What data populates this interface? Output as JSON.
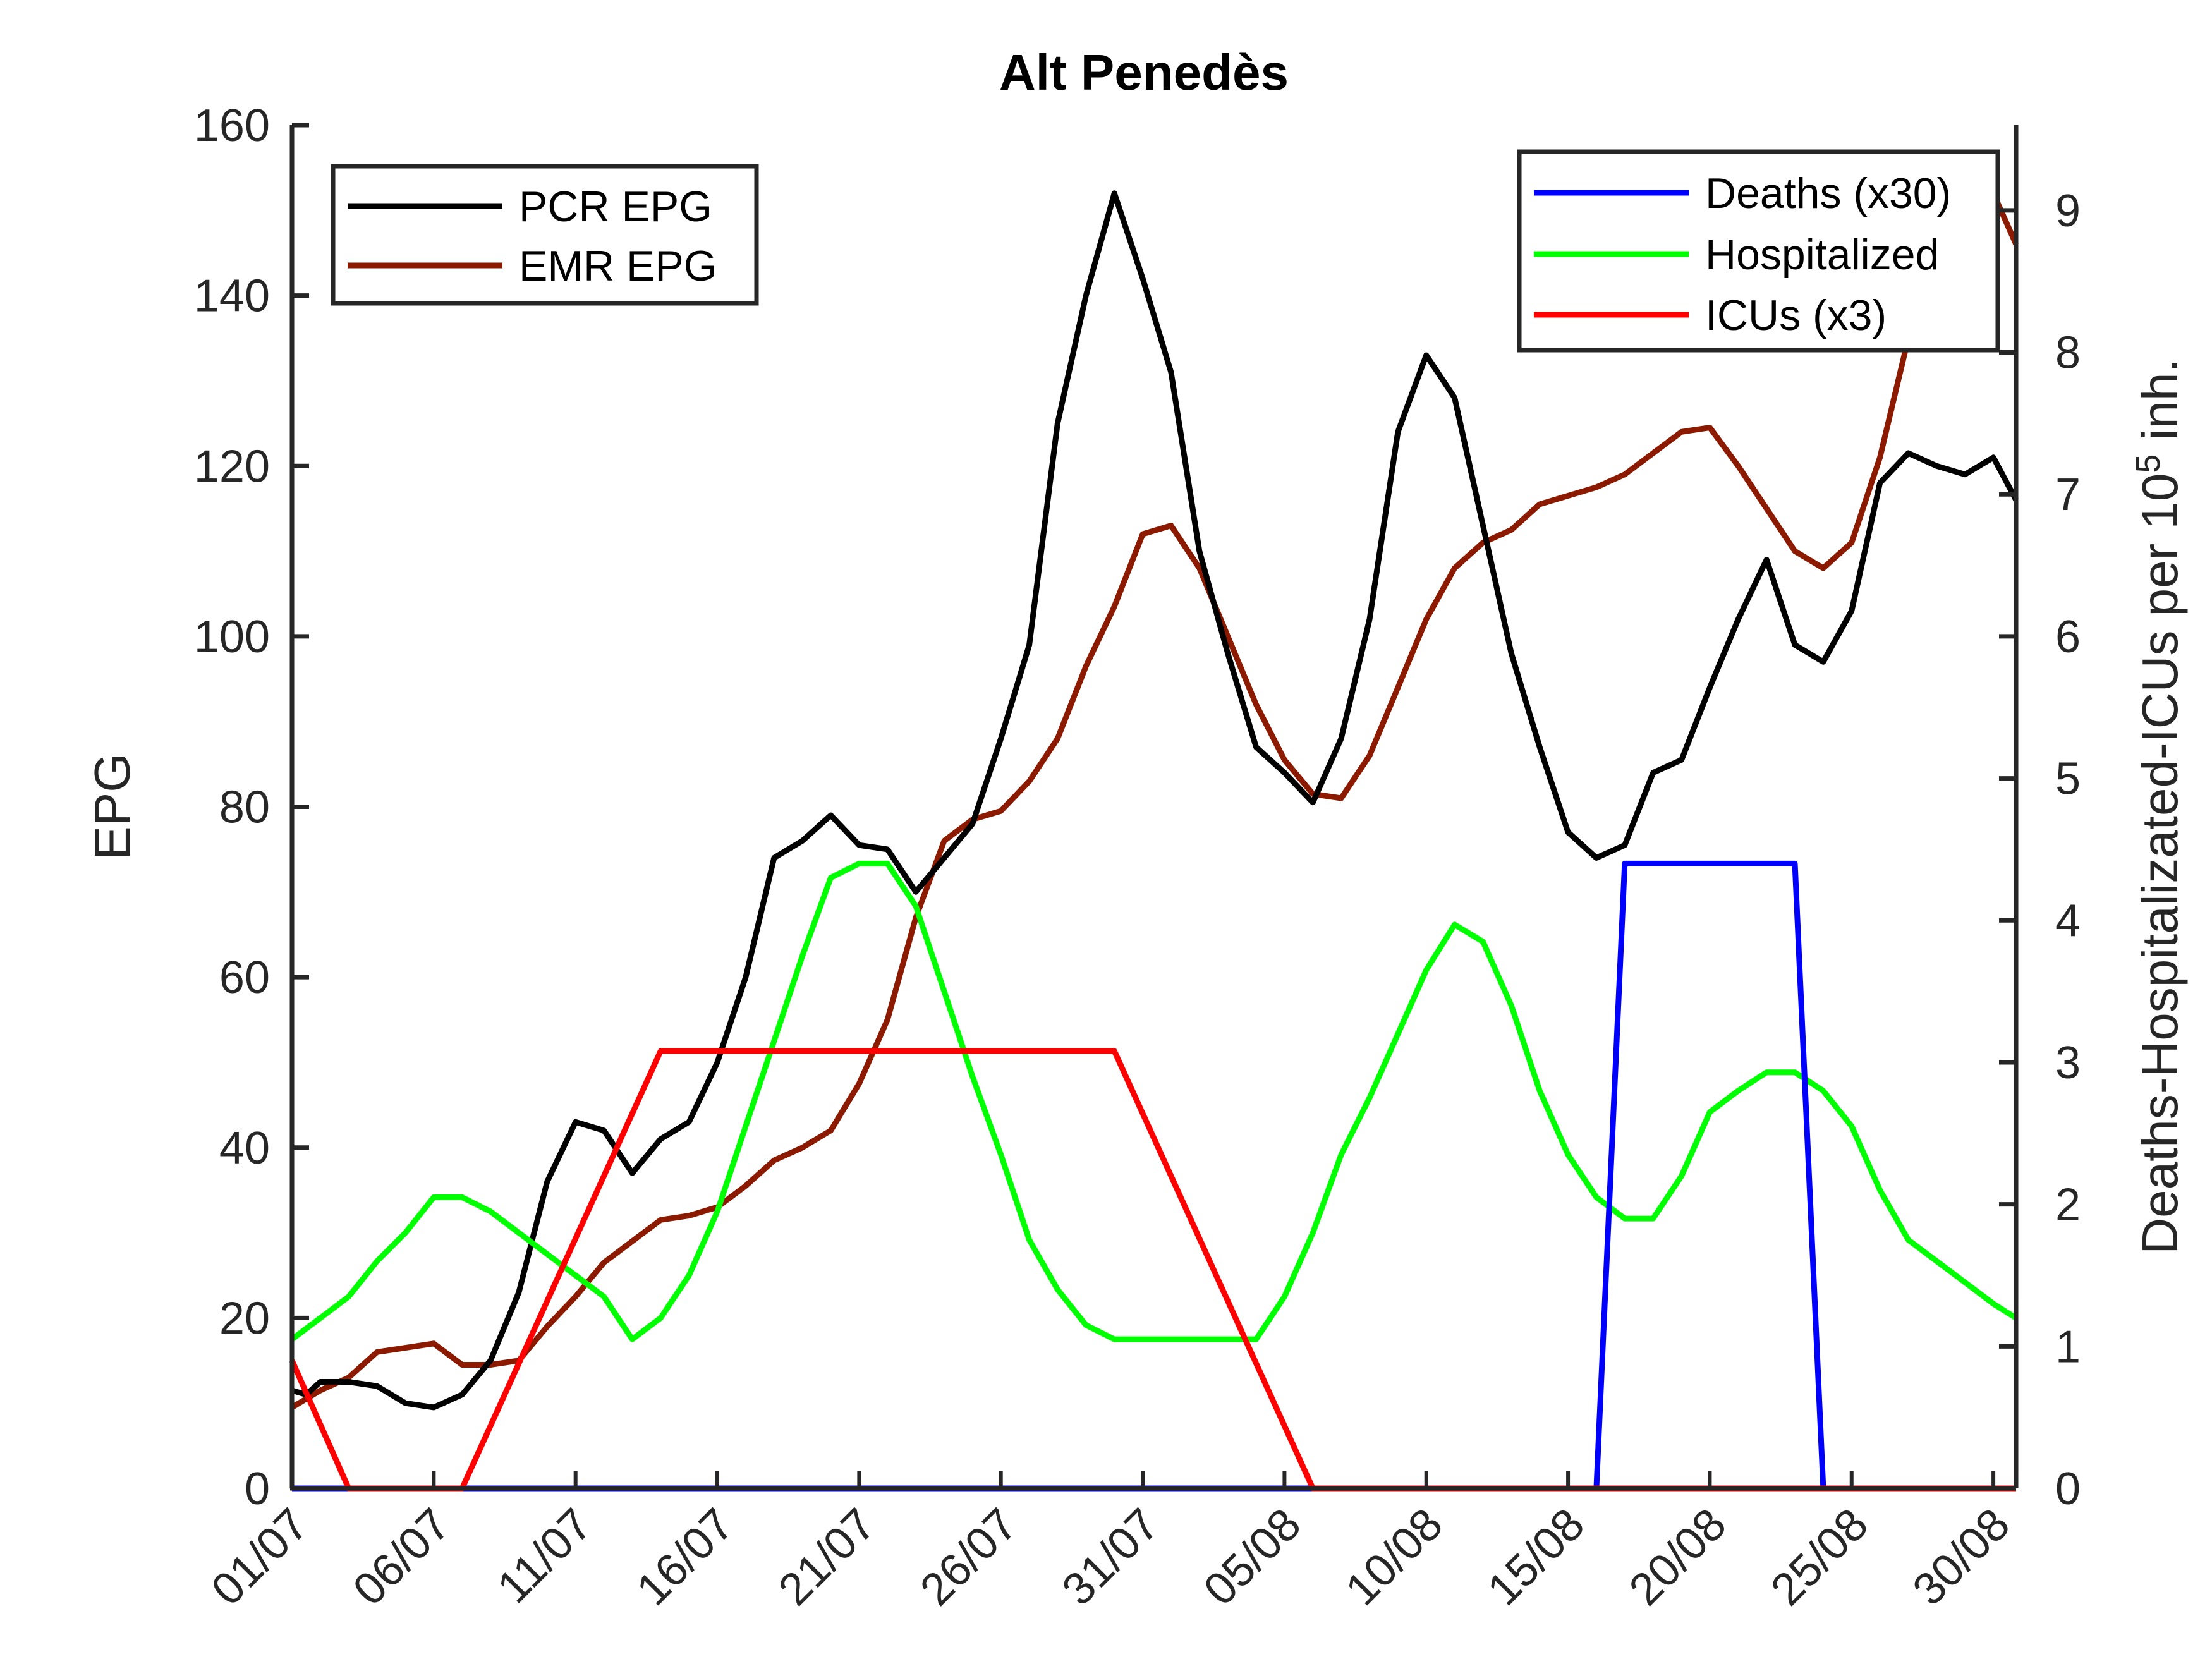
{
  "chart_data": {
    "type": "line",
    "title": "Alt Penedès",
    "xlabel": "",
    "ylabel_left": "EPG",
    "ylabel_right": {
      "text": "Deaths-Hospitalizated-ICUs per 10",
      "sup": "5",
      "suffix": " inh."
    },
    "x_ticks": [
      "01/07",
      "06/07",
      "11/07",
      "16/07",
      "21/07",
      "26/07",
      "31/07",
      "05/08",
      "10/08",
      "15/08",
      "20/08",
      "25/08",
      "30/08"
    ],
    "x_tick_index": [
      0,
      5,
      10,
      15,
      20,
      25,
      30,
      35,
      40,
      45,
      50,
      55,
      60
    ],
    "xlim": [
      0,
      60.8
    ],
    "ylim_left": [
      0,
      160
    ],
    "y_ticks_left": [
      0,
      20,
      40,
      60,
      80,
      100,
      120,
      140,
      160
    ],
    "ylim_right": [
      0,
      9.6
    ],
    "y_ticks_right": [
      0,
      1,
      2,
      3,
      4,
      5,
      6,
      7,
      8,
      9
    ],
    "grid": false,
    "legend_left": {
      "position": "top-left",
      "entries": [
        "PCR EPG",
        "EMR EPG"
      ]
    },
    "legend_right": {
      "position": "top-right",
      "entries": [
        "Deaths (x30)",
        "Hospitalized",
        "ICUs (x3)"
      ]
    },
    "series": [
      {
        "name": "PCR EPG",
        "axis": "left",
        "color": "#000000",
        "x": [
          0,
          0.5,
          1,
          2,
          3,
          4,
          5,
          6,
          7,
          8,
          9,
          10,
          11,
          12,
          13,
          14,
          15,
          16,
          17,
          18,
          19,
          20,
          21,
          22,
          23,
          24,
          25,
          26,
          27,
          28,
          29,
          30,
          31,
          32,
          33,
          34,
          35,
          36,
          37,
          38,
          39,
          40,
          41,
          42,
          43,
          44,
          45,
          46,
          47,
          48,
          49,
          50,
          51,
          52,
          53,
          54,
          55,
          56,
          57,
          58,
          59,
          60,
          60.8
        ],
        "values": [
          11.5,
          11,
          12.5,
          12.5,
          12,
          10,
          9.5,
          11,
          15,
          23,
          36,
          43,
          42,
          37,
          41,
          43,
          50,
          60,
          74,
          76,
          79,
          75.5,
          75,
          70,
          74,
          78,
          88,
          99,
          125,
          140,
          152,
          142,
          131,
          110,
          98,
          87,
          84,
          80.5,
          88,
          102,
          124,
          133,
          128,
          113,
          98,
          87,
          77,
          74,
          75.5,
          84,
          85.5,
          94,
          102,
          109,
          99,
          97,
          103,
          118,
          121.5,
          120,
          119,
          121,
          116
        ]
      },
      {
        "name": "EMR EPG",
        "axis": "left",
        "color": "#8B1A00",
        "x": [
          0,
          1,
          2,
          3,
          4,
          5,
          6,
          7,
          8,
          9,
          10,
          11,
          12,
          13,
          14,
          15,
          16,
          17,
          18,
          19,
          20,
          21,
          22,
          23,
          24,
          25,
          26,
          27,
          28,
          29,
          30,
          31,
          32,
          33,
          34,
          35,
          36,
          37,
          38,
          39,
          40,
          41,
          42,
          43,
          44,
          45,
          46,
          47,
          48,
          49,
          50,
          51,
          52,
          53,
          54,
          55,
          56,
          57,
          58,
          59,
          60,
          60.8
        ],
        "values": [
          9.5,
          11.5,
          13,
          16,
          16.5,
          17,
          14.5,
          14.5,
          15,
          19,
          22.5,
          26.5,
          29,
          31.5,
          32,
          33,
          35.5,
          38.5,
          40,
          42,
          47.5,
          55,
          67,
          76,
          78.5,
          79.5,
          83,
          88,
          96.5,
          103.5,
          112,
          113,
          108,
          100,
          92,
          85.5,
          81.5,
          81,
          86,
          94,
          102,
          108,
          111,
          112.5,
          115.5,
          116.5,
          117.5,
          119,
          121.5,
          124,
          124.5,
          120,
          115,
          110,
          108,
          111,
          121,
          135,
          145,
          150,
          152,
          146
        ]
      },
      {
        "name": "Deaths (x30)",
        "axis": "right",
        "color": "#0000FF",
        "x": [
          0,
          46,
          47,
          48,
          52,
          53,
          54,
          60.8
        ],
        "values": [
          0,
          0,
          4.4,
          4.4,
          4.4,
          4.4,
          0,
          0
        ]
      },
      {
        "name": "Hospitalized",
        "axis": "right",
        "color": "#00FF00",
        "x": [
          0,
          1,
          2,
          3,
          4,
          5,
          6,
          7,
          8,
          9,
          10,
          11,
          12,
          13,
          14,
          15,
          16,
          17,
          18,
          19,
          20,
          21,
          22,
          23,
          24,
          25,
          26,
          27,
          28,
          29,
          30,
          31,
          32,
          33,
          34,
          35,
          36,
          37,
          38,
          39,
          40,
          41,
          42,
          43,
          44,
          45,
          46,
          47,
          48,
          49,
          50,
          51,
          52,
          53,
          54,
          55,
          56,
          57,
          58,
          59,
          60,
          60.8
        ],
        "values": [
          1.05,
          1.2,
          1.35,
          1.6,
          1.8,
          2.05,
          2.05,
          1.95,
          1.8,
          1.65,
          1.5,
          1.35,
          1.05,
          1.2,
          1.5,
          1.95,
          2.55,
          3.15,
          3.75,
          4.3,
          4.4,
          4.4,
          4.1,
          3.5,
          2.9,
          2.35,
          1.75,
          1.4,
          1.15,
          1.05,
          1.05,
          1.05,
          1.05,
          1.05,
          1.05,
          1.35,
          1.8,
          2.35,
          2.75,
          3.2,
          3.65,
          3.97,
          3.85,
          3.4,
          2.8,
          2.35,
          2.05,
          1.9,
          1.9,
          2.2,
          2.65,
          2.8,
          2.93,
          2.93,
          2.8,
          2.55,
          2.1,
          1.75,
          1.6,
          1.45,
          1.3,
          1.2
        ]
      },
      {
        "name": "ICUs (x3)",
        "axis": "right",
        "color": "#FF0000",
        "x": [
          0,
          2,
          6,
          13,
          29,
          36,
          60.8
        ],
        "values": [
          0.9,
          0,
          0,
          3.08,
          3.08,
          0,
          0
        ]
      }
    ]
  }
}
